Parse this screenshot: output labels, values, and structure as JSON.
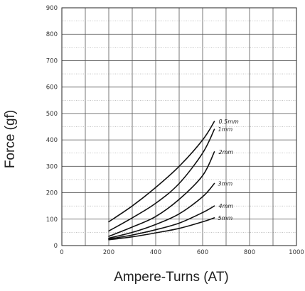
{
  "chart_data": {
    "type": "line",
    "title": "",
    "xlabel": "Ampere-Turns (AT)",
    "ylabel": "Force (gf)",
    "xlim": [
      0,
      1000
    ],
    "ylim": [
      0,
      900
    ],
    "xticks": [
      0,
      200,
      400,
      600,
      800,
      1000
    ],
    "yticks": [
      0,
      100,
      200,
      300,
      400,
      500,
      600,
      700,
      800,
      900
    ],
    "x_tick_labels": [
      "0",
      "200",
      "400",
      "600",
      "800",
      "1000"
    ],
    "y_tick_labels": [
      "0",
      "100",
      "200",
      "300",
      "400",
      "500",
      "600",
      "700",
      "800",
      "900"
    ],
    "grid": true,
    "x_grid_step": 100,
    "y_grid_step": 50,
    "series": [
      {
        "name": "0.5mm",
        "x": [
          200,
          300,
          400,
          500,
          600,
          650
        ],
        "y": [
          90,
          150,
          220,
          300,
          400,
          470
        ]
      },
      {
        "name": "1mm",
        "x": [
          200,
          300,
          400,
          500,
          600,
          650
        ],
        "y": [
          55,
          105,
          160,
          235,
          350,
          440
        ]
      },
      {
        "name": "2mm",
        "x": [
          200,
          300,
          400,
          500,
          600,
          650
        ],
        "y": [
          35,
          70,
          110,
          175,
          265,
          355
        ]
      },
      {
        "name": "3mm",
        "x": [
          200,
          300,
          400,
          500,
          600,
          650
        ],
        "y": [
          28,
          50,
          80,
          120,
          185,
          235
        ]
      },
      {
        "name": "4mm",
        "x": [
          200,
          300,
          400,
          500,
          600,
          650
        ],
        "y": [
          25,
          40,
          60,
          85,
          125,
          150
        ]
      },
      {
        "name": "5mm",
        "x": [
          200,
          300,
          400,
          500,
          600,
          650
        ],
        "y": [
          22,
          33,
          48,
          65,
          90,
          105
        ]
      }
    ]
  }
}
